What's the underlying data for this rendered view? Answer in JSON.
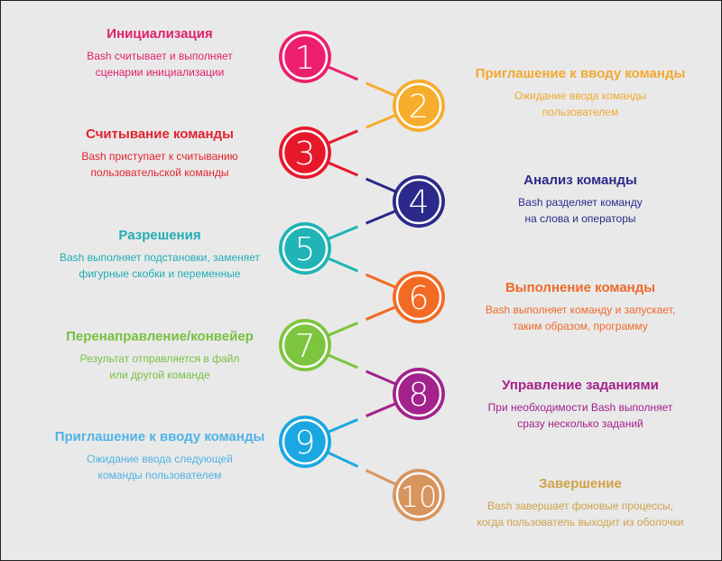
{
  "steps": [
    {
      "number": "1",
      "title": "Инициализация",
      "desc1": "Bash считывает и выполняет",
      "desc2": "сценарии инициализации",
      "color": "#ec1f6e",
      "text_color": "#e0206e"
    },
    {
      "number": "2",
      "title": "Приглашение к вводу команды",
      "desc1": "Ожидание ввода команды",
      "desc2": "пользователем",
      "color": "#f7ad2c",
      "text_color": "#f2a931"
    },
    {
      "number": "3",
      "title": "Считывание команды",
      "desc1": "Bash приступает к считыванию",
      "desc2": "пользовательской команды",
      "color": "#e8182b",
      "text_color": "#e2232f"
    },
    {
      "number": "4",
      "title": "Анализ команды",
      "desc1": "Bash разделяет команду",
      "desc2": "на слова и операторы",
      "color": "#2b2a8a",
      "text_color": "#2b2a8a"
    },
    {
      "number": "5",
      "title": "Разрешения",
      "desc1": "Bash выполняет подстановки, заменяет",
      "desc2": "фигурные скобки и переменные",
      "color": "#20b4b6",
      "text_color": "#20aeb4"
    },
    {
      "number": "6",
      "title": "Выполнение команды",
      "desc1": "Bash выполняет команду и запускает,",
      "desc2": "таким образом, программу",
      "color": "#f26a24",
      "text_color": "#ee6a2a"
    },
    {
      "number": "7",
      "title": "Перенаправление/конвейер",
      "desc1": "Результат отправляется в файл",
      "desc2": "или другой команде",
      "color": "#7dc53e",
      "text_color": "#78c142"
    },
    {
      "number": "8",
      "title": "Управление заданиями",
      "desc1": "При необходимости Bash выполняет",
      "desc2": "сразу несколько заданий",
      "color": "#a3228b",
      "text_color": "#a3228b"
    },
    {
      "number": "9",
      "title": "Приглашение к вводу команды",
      "desc1": "Ожидание ввода следующей",
      "desc2": "команды пользователем",
      "color": "#1ba7e2",
      "text_color": "#4fb3e6"
    },
    {
      "number": "10",
      "title": "Завершение",
      "desc1": "Bash завершает фоновые процессы,",
      "desc2": "когда пользователь выходит из оболочки",
      "color": "#d7955e",
      "text_color": "#cfa24a"
    }
  ]
}
